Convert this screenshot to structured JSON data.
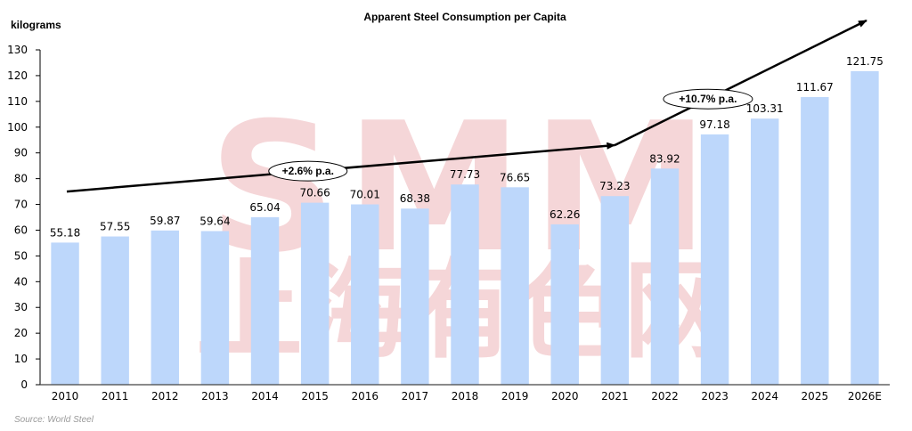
{
  "chart_data": {
    "type": "bar",
    "title": "Apparent Steel Consumption per Capita",
    "xlabel": "",
    "ylabel": "kilograms",
    "ylim": [
      0,
      130
    ],
    "ytick_step": 10,
    "grid": false,
    "categories": [
      "2010",
      "2011",
      "2012",
      "2013",
      "2014",
      "2015",
      "2016",
      "2017",
      "2018",
      "2019",
      "2020",
      "2021",
      "2022",
      "2023",
      "2024",
      "2025",
      "2026E"
    ],
    "values": [
      55.18,
      57.55,
      59.87,
      59.64,
      65.04,
      70.66,
      70.01,
      68.38,
      77.73,
      76.65,
      62.26,
      73.23,
      83.92,
      97.18,
      103.31,
      111.67,
      121.75
    ],
    "data_labels": [
      "55.18",
      "57.55",
      "59.87",
      "59.64",
      "65.04",
      "70.66",
      "70.01",
      "68.38",
      "77.73",
      "76.65",
      "62.26",
      "73.23",
      "83.92",
      "97.18",
      "103.31",
      "111.67",
      "121.75"
    ],
    "bar_color": "#BDD7FB",
    "trend_arrows": [
      {
        "label": "+2.6% p.a.",
        "from": {
          "x": "2010",
          "y": 75
        },
        "to": {
          "x": "2021",
          "y": 93
        }
      },
      {
        "label": "+10.7% p.a.",
        "from": {
          "x": "2021",
          "y": 93
        },
        "to": {
          "x": "2026E",
          "y": 141
        }
      }
    ],
    "watermark": {
      "latin": "SMM",
      "chinese": "上海有色网",
      "color": "#F2C9CC"
    },
    "source": "Source: World Steel"
  }
}
